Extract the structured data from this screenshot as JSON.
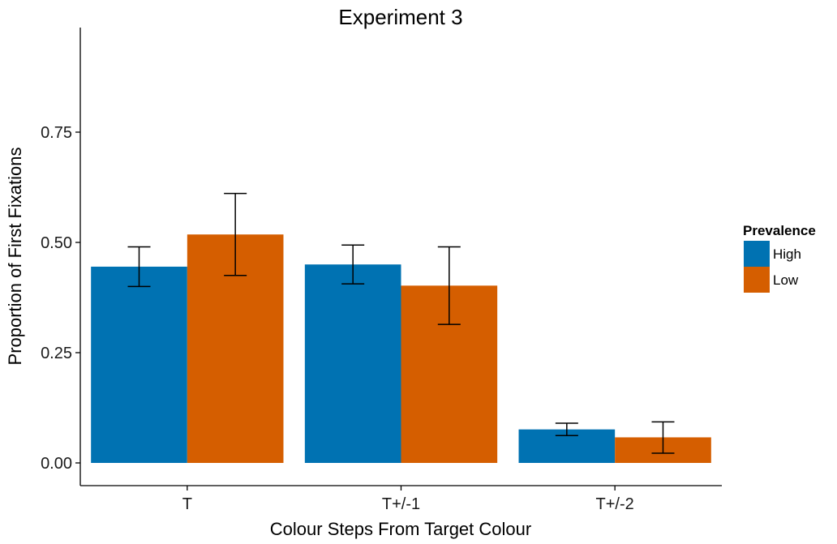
{
  "chart_data": {
    "type": "bar",
    "title": "Experiment 3",
    "xlabel": "Colour Steps From Target Colour",
    "ylabel": "Proportion of First Fixations",
    "categories": [
      "T",
      "T+/-1",
      "T+/-2"
    ],
    "ylim": [
      -0.05,
      0.99
    ],
    "yticks": [
      0.0,
      0.25,
      0.5,
      0.75
    ],
    "ytick_labels": [
      "0.00",
      "0.25",
      "0.50",
      "0.75"
    ],
    "grid": false,
    "legend": {
      "title": "Prevalence",
      "position": "right"
    },
    "series": [
      {
        "name": "High",
        "color": "#0072b2",
        "values": [
          0.445,
          0.45,
          0.076
        ],
        "error_low": [
          0.4,
          0.406,
          0.062
        ],
        "error_high": [
          0.49,
          0.494,
          0.09
        ]
      },
      {
        "name": "Low",
        "color": "#d55e00",
        "values": [
          0.518,
          0.402,
          0.058
        ],
        "error_low": [
          0.425,
          0.314,
          0.022
        ],
        "error_high": [
          0.611,
          0.49,
          0.093
        ]
      }
    ]
  }
}
